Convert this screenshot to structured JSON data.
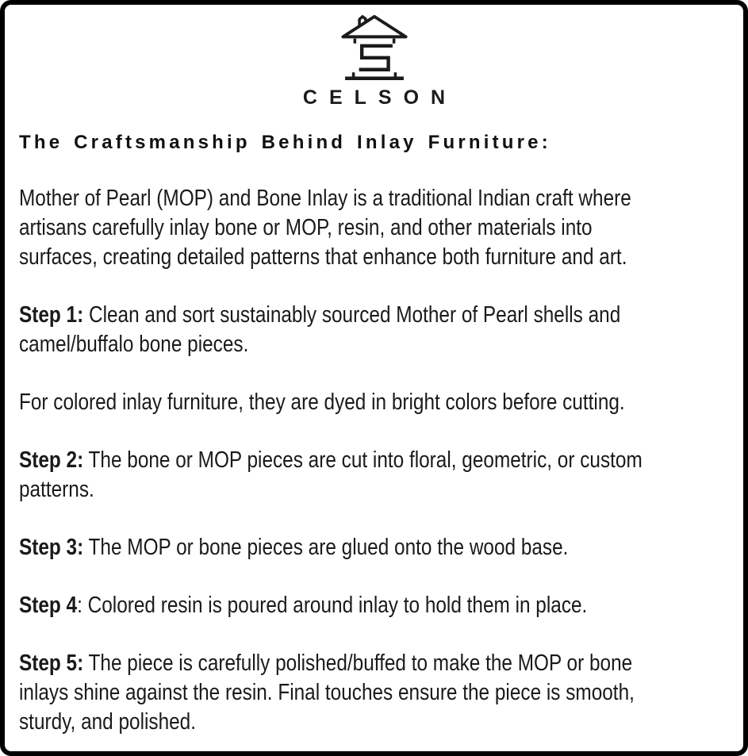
{
  "brand": {
    "wordmark": "CELSON",
    "logo_icon": "house-with-s-monogram-icon"
  },
  "colors": {
    "text": "#1a1a1a",
    "border": "#000000",
    "background": "#ffffff"
  },
  "content": {
    "heading": "The Craftsmanship Behind Inlay Furniture:",
    "paragraphs": [
      {
        "lines": [
          {
            "bold": "",
            "text": "Mother of Pearl (MOP) and Bone Inlay is a traditional Indian craft where"
          },
          {
            "bold": "",
            "text": "artisans carefully inlay bone or MOP, resin, and other materials into"
          },
          {
            "bold": "",
            "text": "surfaces, creating detailed patterns that enhance both furniture and art."
          }
        ]
      },
      {
        "lines": [
          {
            "bold": "Step 1:",
            "text": " Clean and sort sustainably sourced Mother of Pearl shells and"
          },
          {
            "bold": "",
            "text": "camel/buffalo bone pieces."
          }
        ]
      },
      {
        "lines": [
          {
            "bold": "",
            "text": "For colored inlay furniture, they are dyed in bright colors before cutting."
          }
        ]
      },
      {
        "lines": [
          {
            "bold": "Step 2:",
            "text": " The bone or MOP pieces are cut into floral, geometric, or custom"
          },
          {
            "bold": "",
            "text": "patterns."
          }
        ]
      },
      {
        "lines": [
          {
            "bold": "Step 3:",
            "text": " The MOP or bone pieces are glued onto the wood base."
          }
        ]
      },
      {
        "lines": [
          {
            "bold": "Step 4",
            "text": ": Colored resin is poured around inlay to hold them in place."
          }
        ]
      },
      {
        "lines": [
          {
            "bold": "Step 5:",
            "text": " The piece is carefully polished/buffed to make the MOP or bone"
          },
          {
            "bold": "",
            "text": "inlays shine against the resin. Final touches ensure the piece is smooth,"
          },
          {
            "bold": "",
            "text": "sturdy, and polished."
          }
        ]
      }
    ]
  }
}
